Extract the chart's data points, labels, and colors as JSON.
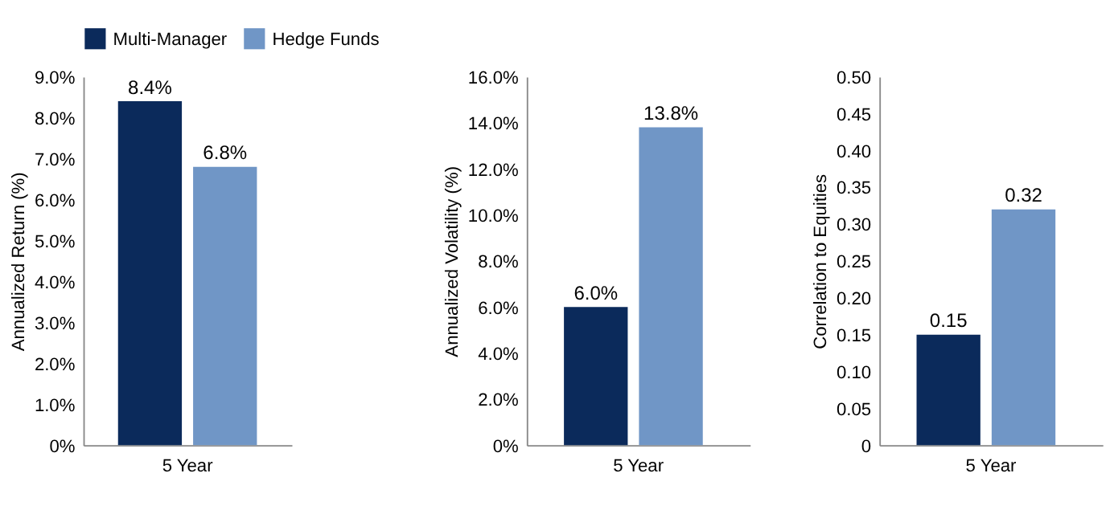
{
  "chart_data": [
    {
      "type": "bar",
      "ylabel": "Annualized Return (%)",
      "categories": [
        "5 Year"
      ],
      "legend": "top",
      "grid": false,
      "ylim": [
        0,
        9
      ],
      "yticks": [
        {
          "value": 0,
          "label": "0%"
        },
        {
          "value": 1,
          "label": "1.0%"
        },
        {
          "value": 2,
          "label": "2.0%"
        },
        {
          "value": 3,
          "label": "3.0%"
        },
        {
          "value": 4,
          "label": "4.0%"
        },
        {
          "value": 5,
          "label": "5.0%"
        },
        {
          "value": 6,
          "label": "6.0%"
        },
        {
          "value": 7,
          "label": "7.0%"
        },
        {
          "value": 8,
          "label": "8.0%"
        },
        {
          "value": 9,
          "label": "9.0%"
        }
      ],
      "series": [
        {
          "name": "Multi-Manager",
          "color": "#0b2a5b",
          "values": [
            8.4
          ],
          "value_labels": [
            "8.4%"
          ]
        },
        {
          "name": "Hedge Funds",
          "color": "#7096c6",
          "values": [
            6.8
          ],
          "value_labels": [
            "6.8%"
          ]
        }
      ]
    },
    {
      "type": "bar",
      "ylabel": "Annualized Volatility (%)",
      "categories": [
        "5 Year"
      ],
      "grid": false,
      "ylim": [
        0,
        16
      ],
      "yticks": [
        {
          "value": 0,
          "label": "0%"
        },
        {
          "value": 2,
          "label": "2.0%"
        },
        {
          "value": 4,
          "label": "4.0%"
        },
        {
          "value": 6,
          "label": "6.0%"
        },
        {
          "value": 8,
          "label": "8.0%"
        },
        {
          "value": 10,
          "label": "10.0%"
        },
        {
          "value": 12,
          "label": "12.0%"
        },
        {
          "value": 14,
          "label": "14.0%"
        },
        {
          "value": 16,
          "label": "16.0%"
        }
      ],
      "series": [
        {
          "color": "#0b2a5b",
          "values": [
            6.0
          ],
          "value_labels": [
            "6.0%"
          ]
        },
        {
          "color": "#7096c6",
          "values": [
            13.8
          ],
          "value_labels": [
            "13.8%"
          ]
        }
      ]
    },
    {
      "type": "bar",
      "ylabel": "Correlation to Equities",
      "categories": [
        "5 Year"
      ],
      "grid": false,
      "data_labels": true,
      "ylim": [
        0,
        0.5
      ],
      "yticks": [
        0,
        0.05,
        {
          "value": 0.1,
          "label": "0.10"
        },
        0.15,
        {
          "value": 0.2,
          "label": "0.20"
        },
        0.25,
        {
          "value": 0.3,
          "label": "0.30"
        },
        0.35,
        {
          "value": 0.4,
          "label": "0.40"
        },
        0.45,
        {
          "value": 0.5,
          "label": "0.50"
        }
      ],
      "series": [
        {
          "color": "#0b2a5b",
          "values": [
            0.15
          ]
        },
        {
          "color": "#7096c6",
          "values": [
            0.32
          ]
        }
      ]
    }
  ]
}
